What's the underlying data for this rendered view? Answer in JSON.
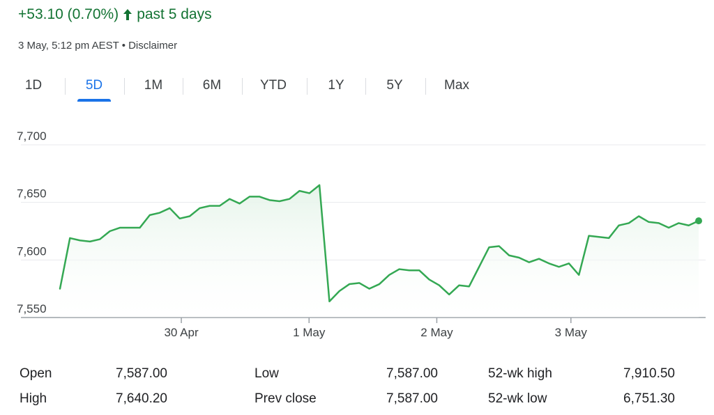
{
  "header": {
    "change_text": "+53.10 (0.70%)",
    "direction_icon": "arrow-up-icon",
    "period_text": "past 5 days",
    "accent_color": "#137333"
  },
  "timestamp": {
    "time": "3 May, 5:12 pm AEST",
    "separator": "•",
    "disclaimer": "Disclaimer"
  },
  "tabs": [
    {
      "label": "1D",
      "active": false
    },
    {
      "label": "5D",
      "active": true
    },
    {
      "label": "1M",
      "active": false
    },
    {
      "label": "6M",
      "active": false
    },
    {
      "label": "YTD",
      "active": false
    },
    {
      "label": "1Y",
      "active": false
    },
    {
      "label": "5Y",
      "active": false
    },
    {
      "label": "Max",
      "active": false
    }
  ],
  "chart_data": {
    "type": "area",
    "title": "",
    "xlabel": "",
    "ylabel": "",
    "y_ticks": [
      "7,700",
      "7,650",
      "7,600",
      "7,550"
    ],
    "y_tick_values": [
      7700,
      7650,
      7600,
      7550
    ],
    "ylim": [
      7550,
      7700
    ],
    "x_range": [
      0,
      50
    ],
    "x_ticks": [
      {
        "label": "30 Apr",
        "x": 9.5
      },
      {
        "label": "1 May",
        "x": 19.5
      },
      {
        "label": "2 May",
        "x": 29.5
      },
      {
        "label": "3 May",
        "x": 40.0
      }
    ],
    "grid": true,
    "line_color": "#34a853",
    "fill_color": "#e6f4ea",
    "series": [
      {
        "values": [
          7575,
          7619,
          7617,
          7616,
          7618,
          7625,
          7628,
          7628,
          7628,
          7639,
          7641,
          7645,
          7636,
          7638,
          7645,
          7647,
          7647,
          7653,
          7649,
          7655,
          7655,
          7652,
          7651,
          7653,
          7660,
          7658,
          7665,
          7564,
          7573,
          7579,
          7580,
          7575,
          7579,
          7587,
          7592,
          7591,
          7591,
          7583,
          7578,
          7570,
          7578,
          7577,
          7594,
          7611,
          7612,
          7604,
          7602,
          7598,
          7601,
          7597,
          7594,
          7597,
          7587,
          7621,
          7620,
          7619,
          7630,
          7632,
          7638,
          7633,
          7632,
          7628,
          7632,
          7630,
          7634
        ]
      }
    ]
  },
  "stats": {
    "open_label": "Open",
    "open_value": "7,587.00",
    "high_label": "High",
    "high_value": "7,640.20",
    "low_label": "Low",
    "low_value": "7,587.00",
    "prev_close_label": "Prev close",
    "prev_close_value": "7,587.00",
    "wk52_high_label": "52-wk high",
    "wk52_high_value": "7,910.50",
    "wk52_low_label": "52-wk low",
    "wk52_low_value": "6,751.30"
  }
}
